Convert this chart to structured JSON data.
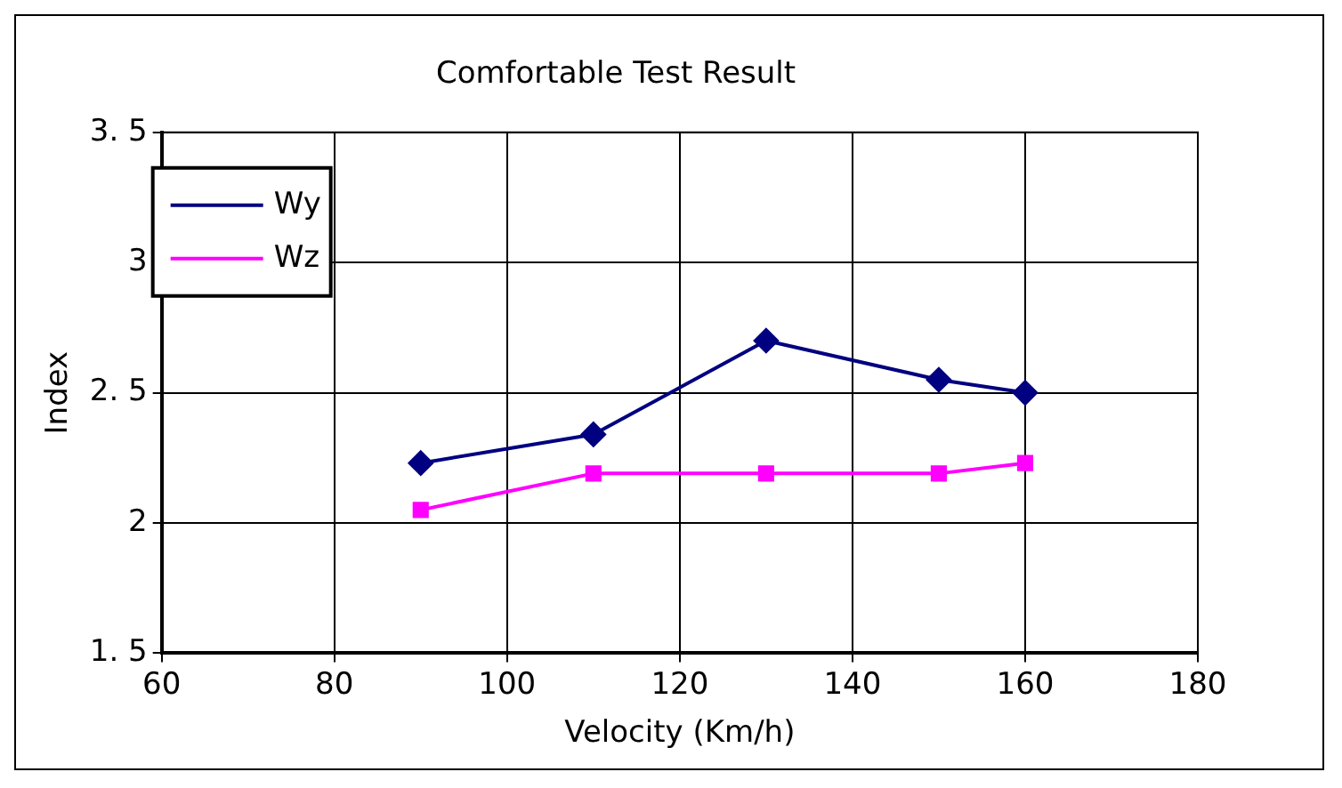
{
  "chart_data": {
    "type": "line",
    "title": "Comfortable Test Result",
    "xlabel": "Velocity (Km/h)",
    "ylabel": "Index",
    "x": [
      90,
      110,
      130,
      150,
      160
    ],
    "series": [
      {
        "name": "Wy",
        "color": "#000080",
        "marker": "diamond",
        "values": [
          2.23,
          2.34,
          2.7,
          2.55,
          2.5
        ]
      },
      {
        "name": "Wz",
        "color": "#ff00ff",
        "marker": "square",
        "values": [
          2.05,
          2.19,
          2.19,
          2.19,
          2.23
        ]
      }
    ],
    "xlim": [
      60,
      180
    ],
    "xticks": [
      60,
      80,
      100,
      120,
      140,
      160,
      180
    ],
    "ylim": [
      1.5,
      3.5
    ],
    "yticks": [
      {
        "value": 1.5,
        "label": "1. 5"
      },
      2,
      {
        "value": 2.5,
        "label": "2. 5"
      },
      3,
      {
        "value": 3.5,
        "label": "3. 5"
      }
    ],
    "grid": true,
    "legend": "top left",
    "line_style": "solid"
  }
}
